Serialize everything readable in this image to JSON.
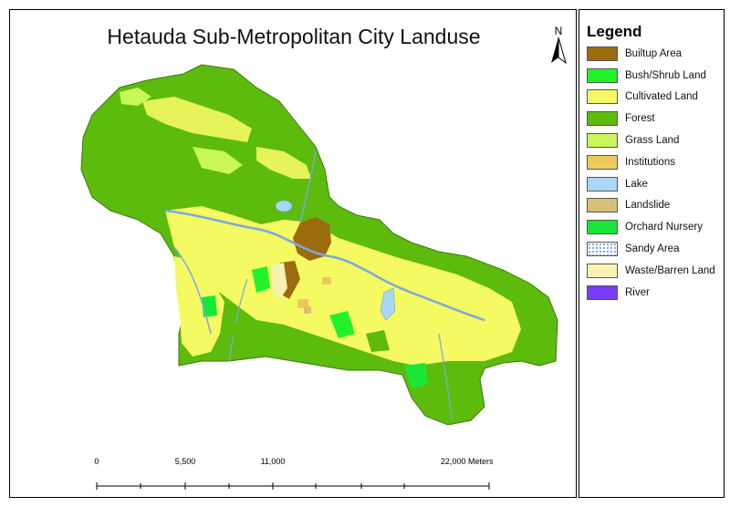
{
  "map": {
    "title": "Hetauda Sub-Metropolitan City Landuse",
    "north_label": "N",
    "scale": {
      "labels": [
        "0",
        "5,500",
        "11,000",
        "22,000 Meters"
      ]
    }
  },
  "legend": {
    "title": "Legend",
    "items": [
      {
        "label": "Builtup Area",
        "color": "#9C6B0C"
      },
      {
        "label": "Bush/Shrub Land",
        "color": "#22F22A"
      },
      {
        "label": "Cultivated Land",
        "color": "#F5FA62"
      },
      {
        "label": "Forest",
        "color": "#5DBB0E"
      },
      {
        "label": "Grass Land",
        "color": "#C8F75A"
      },
      {
        "label": "Institutions",
        "color": "#EDC85A"
      },
      {
        "label": "Lake",
        "color": "#A8D8F5"
      },
      {
        "label": "Landslide",
        "color": "#D9C07A"
      },
      {
        "label": "Orchard Nursery",
        "color": "#19E838"
      },
      {
        "label": "Sandy Area",
        "color": "#DCE8F8"
      },
      {
        "label": "Waste/Barren Land",
        "color": "#F7F2B0"
      },
      {
        "label": "River",
        "color": "#7A3CFF"
      }
    ]
  }
}
